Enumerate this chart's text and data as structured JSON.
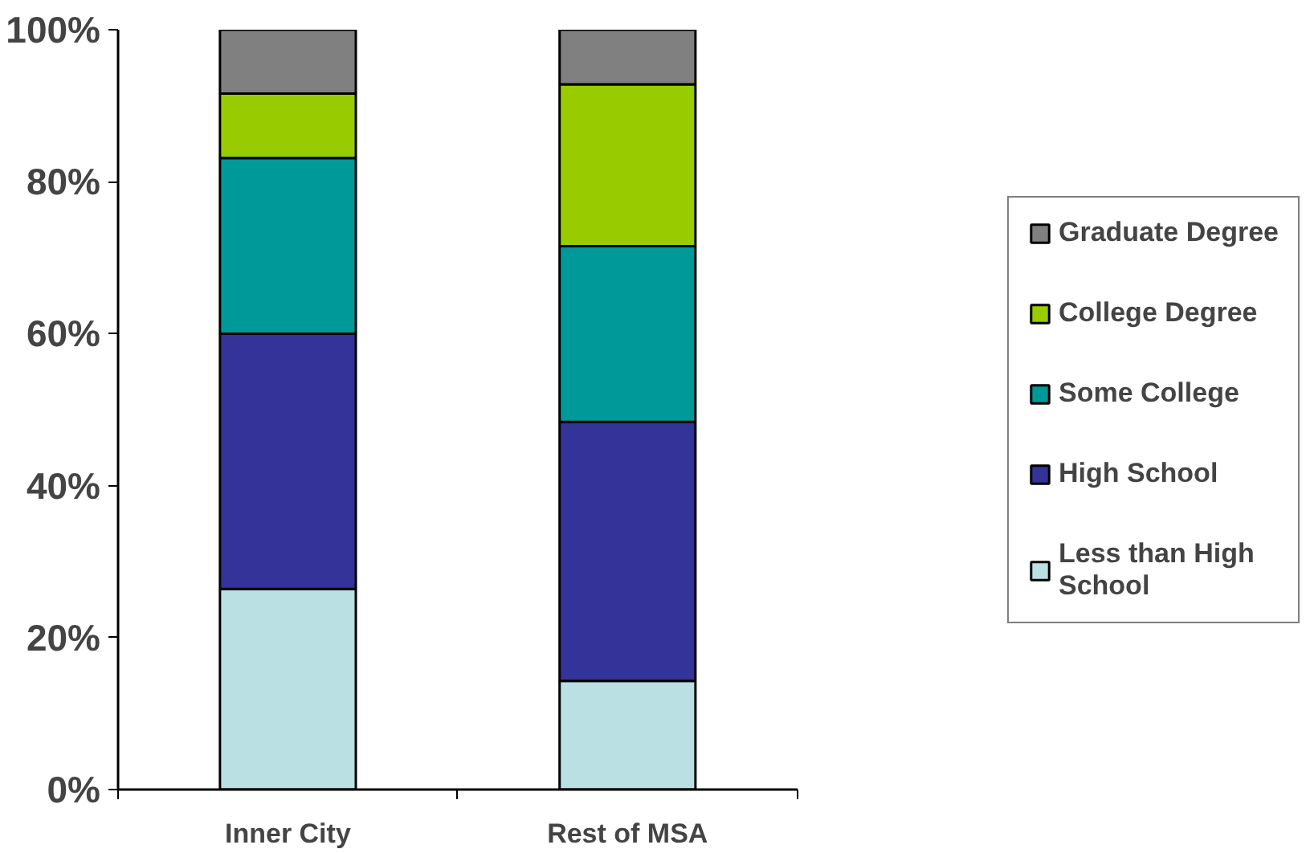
{
  "chart_data": {
    "type": "bar",
    "stacked": true,
    "categories": [
      "Inner City",
      "Rest of MSA"
    ],
    "series": [
      {
        "name": "Less than High School",
        "color": "#bbe0e3",
        "values": [
          26.4,
          14.3
        ]
      },
      {
        "name": "High School",
        "color": "#333399",
        "values": [
          33.6,
          34.1
        ]
      },
      {
        "name": "Some College",
        "color": "#009999",
        "values": [
          23.1,
          23.1
        ]
      },
      {
        "name": "College Degree",
        "color": "#99cc00",
        "values": [
          8.5,
          21.3
        ]
      },
      {
        "name": "Graduate Degree",
        "color": "#808080",
        "values": [
          8.4,
          7.2
        ]
      }
    ],
    "ylim": [
      0,
      100
    ],
    "yticks": [
      {
        "value": 0,
        "label": "0%"
      },
      {
        "value": 20,
        "label": "20%"
      },
      {
        "value": 40,
        "label": "40%"
      },
      {
        "value": 60,
        "label": "60%"
      },
      {
        "value": 80,
        "label": "80%"
      },
      {
        "value": 100,
        "label": "100%"
      }
    ],
    "grid": false,
    "legend": "right"
  }
}
